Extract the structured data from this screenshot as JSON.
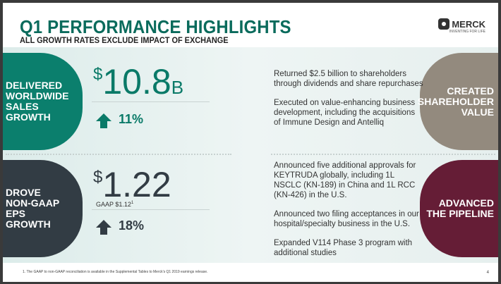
{
  "header": {
    "title": "Q1 PERFORMANCE HIGHLIGHTS",
    "subtitle": "ALL GROWTH RATES EXCLUDE IMPACT OF EXCHANGE"
  },
  "logo": {
    "name": "MERCK",
    "tagline": "INVENTING FOR LIFE"
  },
  "sales": {
    "label": [
      "DELIVERED",
      "WORLDWIDE",
      "SALES",
      "GROWTH"
    ],
    "currency": "$",
    "value": "10.8",
    "unit": "B",
    "growth": "11%"
  },
  "eps": {
    "label": [
      "DROVE",
      "NON-GAAP",
      "EPS",
      "GROWTH"
    ],
    "currency": "$",
    "value": "1.22",
    "gaap": "GAAP $1.12",
    "gaap_note": "1",
    "growth": "18%"
  },
  "shareholder": {
    "label": [
      "CREATED",
      "SHAREHOLDER",
      "VALUE"
    ],
    "points": [
      "Returned $2.5 billion to shareholders through dividends and share repurchases",
      "Executed on value-enhancing business development, including the acquisitions of Immune Design and Antelliq"
    ]
  },
  "pipeline": {
    "label": [
      "ADVANCED",
      "THE PIPELINE"
    ],
    "points": [
      "Announced five additional approvals for KEYTRUDA globally, including 1L NSCLC (KN-189) in China and 1L RCC (KN-426) in the U.S.",
      "Announced two filing acceptances in our hospital/specialty business in the U.S.",
      "Expanded V114 Phase 3 program with additional studies"
    ]
  },
  "footnote": "1. The GAAP to non-GAAP reconciliation is available in the Supplemental Tables to Merck's Q1 2019 earnings release.",
  "page_number": "4",
  "colors": {
    "teal": "#0b7f6d",
    "dark": "#323c44",
    "taupe": "#938a7e",
    "maroon": "#651d36"
  }
}
